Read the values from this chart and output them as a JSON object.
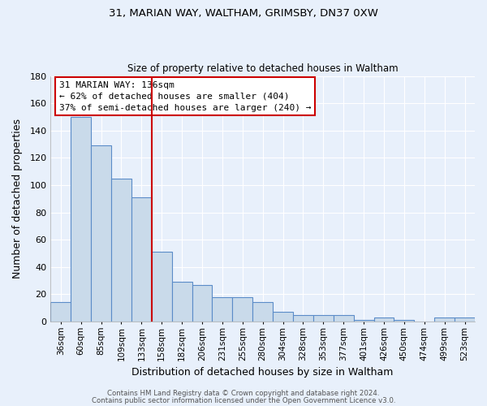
{
  "title1": "31, MARIAN WAY, WALTHAM, GRIMSBY, DN37 0XW",
  "title2": "Size of property relative to detached houses in Waltham",
  "xlabel": "Distribution of detached houses by size in Waltham",
  "ylabel": "Number of detached properties",
  "categories": [
    "36sqm",
    "60sqm",
    "85sqm",
    "109sqm",
    "133sqm",
    "158sqm",
    "182sqm",
    "206sqm",
    "231sqm",
    "255sqm",
    "280sqm",
    "304sqm",
    "328sqm",
    "353sqm",
    "377sqm",
    "401sqm",
    "426sqm",
    "450sqm",
    "474sqm",
    "499sqm",
    "523sqm"
  ],
  "values": [
    14,
    150,
    129,
    105,
    91,
    51,
    29,
    27,
    18,
    18,
    14,
    7,
    5,
    5,
    5,
    1,
    3,
    1,
    0,
    3,
    3
  ],
  "bar_color": "#c9daea",
  "bar_edge_color": "#5b8cc8",
  "background_color": "#e8f0fb",
  "grid_color": "#ffffff",
  "vline_color": "#cc0000",
  "vline_x": 4.5,
  "ylim": [
    0,
    180
  ],
  "yticks": [
    0,
    20,
    40,
    60,
    80,
    100,
    120,
    140,
    160,
    180
  ],
  "annotation_line1": "31 MARIAN WAY: 136sqm",
  "annotation_line2": "← 62% of detached houses are smaller (404)",
  "annotation_line3": "37% of semi-detached houses are larger (240) →",
  "annotation_box_color": "#ffffff",
  "annotation_box_edge": "#cc0000",
  "footer1": "Contains HM Land Registry data © Crown copyright and database right 2024.",
  "footer2": "Contains public sector information licensed under the Open Government Licence v3.0."
}
